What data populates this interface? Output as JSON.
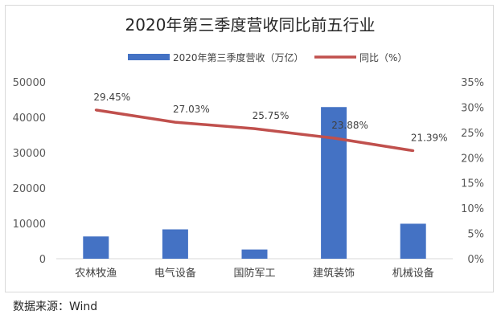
{
  "source": "数据来源：Wind",
  "chart_data": {
    "type": "bar",
    "title": "2020年第三季度营收同比前五行业",
    "categories": [
      "农林牧渔",
      "电气设备",
      "国防军工",
      "建筑装饰",
      "机械设备"
    ],
    "series": [
      {
        "name": "2020年第三季度营收（万亿）",
        "type": "bar",
        "axis": "left",
        "color": "#4472c4",
        "values": [
          6300,
          8300,
          2600,
          42900,
          9900
        ]
      },
      {
        "name": "同比（%）",
        "type": "line",
        "axis": "right",
        "color": "#c0504d",
        "values": [
          29.45,
          27.03,
          25.75,
          23.88,
          21.39
        ],
        "labels": [
          "29.45%",
          "27.03%",
          "25.75%",
          "23.88%",
          "21.39%"
        ]
      }
    ],
    "y_left": {
      "min": 0,
      "max": 50000,
      "ticks": [
        0,
        10000,
        20000,
        30000,
        40000,
        50000
      ]
    },
    "y_right": {
      "min": 0,
      "max": 35,
      "ticks": [
        "0%",
        "5%",
        "10%",
        "15%",
        "20%",
        "25%",
        "30%",
        "35%"
      ]
    },
    "legend_position": "top",
    "grid": false
  }
}
